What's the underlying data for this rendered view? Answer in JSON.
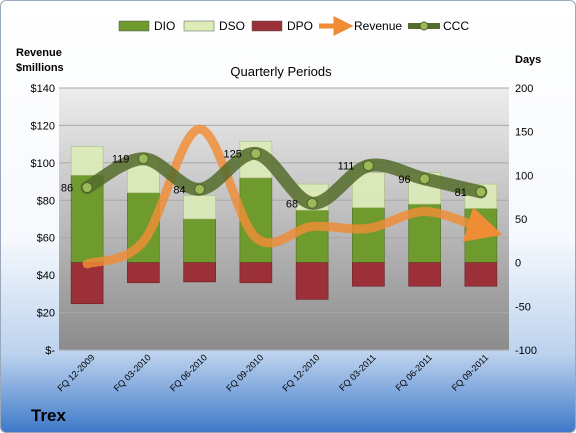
{
  "chart_data": {
    "type": "bar",
    "title": "Quarterly Periods",
    "left_axis_title": [
      "Revenue",
      "$millions"
    ],
    "right_axis_title": "Days",
    "categories": [
      "FQ 12-2009",
      "FQ 03-2010",
      "FQ 06-2010",
      "FQ 09-2010",
      "FQ 12-2010",
      "FQ 03-2011",
      "FQ 06-2011",
      "FQ 09-2011"
    ],
    "left_axis": {
      "min": 0,
      "max": 140,
      "step": 20,
      "tick_labels": [
        "$-",
        "$20",
        "$40",
        "$60",
        "$80",
        "$100",
        "$120",
        "$140"
      ]
    },
    "right_axis": {
      "min": -100,
      "max": 200,
      "step": 50,
      "tick_labels": [
        "-100",
        "-50",
        "0",
        "50",
        "100",
        "150",
        "200"
      ]
    },
    "series": [
      {
        "name": "DIO",
        "kind": "bar",
        "axis": "right",
        "color": "#6f9a2e",
        "values": [
          100,
          80,
          50,
          97,
          60,
          63,
          67,
          62
        ]
      },
      {
        "name": "DSO",
        "kind": "bar",
        "axis": "right",
        "color": "#dcebb8",
        "values": [
          33,
          40,
          27,
          42,
          30,
          40,
          36,
          28
        ]
      },
      {
        "name": "DPO",
        "kind": "bar",
        "axis": "right",
        "color": "#9b3038",
        "values": [
          -47,
          -23,
          -22,
          -23,
          -42,
          -27,
          -27,
          -27
        ]
      },
      {
        "name": "Revenue",
        "kind": "line",
        "axis": "left",
        "color": "#f08c35",
        "values": [
          46,
          58,
          118,
          60,
          66,
          65,
          74,
          65
        ]
      },
      {
        "name": "CCC",
        "kind": "line",
        "axis": "right",
        "color": "#536b2c",
        "values": [
          86,
          119,
          84,
          125,
          68,
          111,
          96,
          81
        ],
        "data_labels": [
          "86",
          "119",
          "84",
          "125",
          "68",
          "111",
          "96",
          "81"
        ]
      }
    ],
    "legend_position": "top",
    "grid": true
  },
  "footer": {
    "company": "Trex"
  }
}
